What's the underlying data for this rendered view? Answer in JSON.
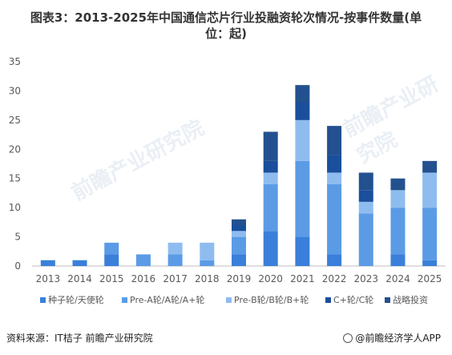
{
  "title": "图表3：2013-2025年中国通信芯片行业投融资轮次情况-按事件数量(单位：起)",
  "title_display": "图表3：2013-2025年中国通信芯片行业投融资轮次情况-按事件数量(单\n位：起)",
  "source": "资料来源：IT桔子 前瞻产业研究院",
  "brand": "@前瞻经济学人APP",
  "watermark": "前瞻产业研究院",
  "chart_data": {
    "type": "bar",
    "stacked": true,
    "categories": [
      "2013",
      "2014",
      "2015",
      "2016",
      "2017",
      "2018",
      "2019",
      "2020",
      "2021",
      "2022",
      "2023",
      "2024",
      "2025"
    ],
    "series": [
      {
        "name": "种子轮/天使轮",
        "color": "#3a7fd9",
        "values": [
          1,
          1,
          2,
          0,
          0,
          0,
          2,
          6,
          5,
          2,
          0,
          2,
          1
        ]
      },
      {
        "name": "Pre-A轮/A轮/A+轮",
        "color": "#5b9be6",
        "values": [
          0,
          0,
          2,
          2,
          2,
          1,
          3,
          8,
          13,
          12,
          9,
          8,
          9
        ]
      },
      {
        "name": "Pre-B轮/B轮/B+轮",
        "color": "#8fbcef",
        "values": [
          0,
          0,
          0,
          0,
          2,
          3,
          1,
          2,
          7,
          2,
          2,
          3,
          6
        ]
      },
      {
        "name": "C+轮/C轮",
        "color": "#1a4f9c",
        "values": [
          0,
          0,
          0,
          0,
          0,
          0,
          1,
          2,
          3,
          3,
          2,
          0,
          0
        ]
      },
      {
        "name": "战略投资",
        "color": "#23518f",
        "values": [
          0,
          0,
          0,
          0,
          0,
          0,
          1,
          5,
          3,
          5,
          3,
          2,
          2
        ]
      }
    ],
    "ylim": [
      0,
      35
    ],
    "yticks": [
      0,
      5,
      10,
      15,
      20,
      25,
      30,
      35
    ],
    "grid": false,
    "legend": "bottom"
  },
  "colors": {
    "axis": "#bfbfbf",
    "text": "#595959"
  }
}
